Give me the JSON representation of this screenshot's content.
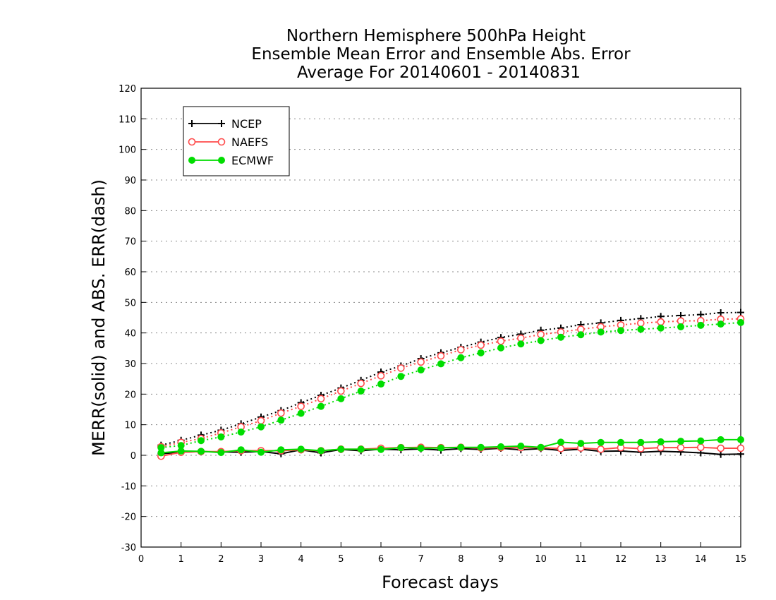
{
  "chart_data": {
    "type": "line",
    "title": [
      "Northern Hemisphere 500hPa Height",
      "Ensemble Mean Error and Ensemble Abs. Error",
      "Average For 20140601 - 20140831"
    ],
    "xlabel": "Forecast days",
    "ylabel": "MERR(solid) and ABS. ERR(dash)",
    "xlim": [
      0,
      15
    ],
    "ylim": [
      -30,
      120
    ],
    "xticks": [
      "0",
      "1",
      "2",
      "3",
      "4",
      "5",
      "6",
      "7",
      "8",
      "9",
      "10",
      "11",
      "12",
      "13",
      "14",
      "15"
    ],
    "yticks": [
      "-30",
      "-20",
      "-10",
      "0",
      "10",
      "20",
      "30",
      "40",
      "50",
      "60",
      "70",
      "80",
      "90",
      "100",
      "110",
      "120"
    ],
    "grid": "dotted horizontal",
    "legend_position": "top-left",
    "x": [
      0.5,
      1,
      1.5,
      2,
      2.5,
      3,
      3.5,
      4,
      4.5,
      5,
      5.5,
      6,
      6.5,
      7,
      7.5,
      8,
      8.5,
      9,
      9.5,
      10,
      10.5,
      11,
      11.5,
      12,
      12.5,
      13,
      13.5,
      14,
      14.5,
      15
    ],
    "series": [
      {
        "name": "NCEP",
        "color": "#000000",
        "marker": "plus",
        "merr": [
          0.5,
          1.0,
          1.2,
          1.1,
          1.0,
          1.2,
          0.5,
          1.8,
          0.8,
          1.9,
          1.5,
          2.0,
          1.8,
          2.1,
          1.7,
          2.2,
          1.9,
          2.3,
          1.8,
          2.2,
          1.6,
          2.0,
          1.3,
          1.4,
          1.0,
          1.3,
          1.1,
          0.8,
          0.3,
          0.4
        ],
        "abs_err": [
          3.3,
          4.9,
          6.6,
          8.2,
          10.3,
          12.5,
          14.6,
          17.2,
          19.6,
          22.0,
          24.5,
          27.2,
          29.2,
          31.6,
          33.5,
          35.3,
          37.0,
          38.5,
          39.6,
          40.9,
          41.6,
          42.7,
          43.3,
          44.1,
          44.7,
          45.4,
          45.7,
          46.0,
          46.6,
          46.7
        ]
      },
      {
        "name": "NAEFS",
        "color": "#ff4a4a",
        "marker": "open-circle",
        "merr": [
          -0.3,
          1.0,
          1.2,
          1.2,
          1.5,
          1.5,
          1.5,
          1.8,
          1.5,
          2.0,
          2.0,
          2.3,
          2.5,
          2.6,
          2.5,
          2.6,
          2.4,
          2.5,
          2.5,
          2.5,
          2.2,
          2.4,
          2.0,
          2.5,
          2.2,
          2.5,
          2.5,
          2.6,
          2.3,
          2.3
        ],
        "abs_err": [
          2.8,
          4.2,
          5.5,
          7.3,
          9.3,
          11.3,
          13.8,
          16.0,
          18.5,
          21.0,
          23.5,
          26.0,
          28.5,
          30.5,
          32.5,
          34.5,
          36.0,
          37.3,
          38.3,
          39.5,
          40.3,
          41.2,
          42.0,
          42.6,
          43.2,
          43.6,
          43.9,
          44.0,
          44.5,
          44.6
        ]
      },
      {
        "name": "ECMWF",
        "color": "#00dd00",
        "marker": "filled-circle",
        "merr": [
          0.8,
          1.4,
          1.3,
          0.9,
          1.8,
          1.0,
          1.8,
          2.0,
          1.5,
          2.0,
          2.0,
          1.9,
          2.5,
          2.3,
          2.4,
          2.6,
          2.6,
          2.8,
          3.0,
          2.6,
          4.3,
          3.9,
          4.2,
          4.2,
          4.2,
          4.4,
          4.6,
          4.7,
          5.1,
          5.1
        ],
        "abs_err": [
          2.5,
          3.2,
          4.8,
          6.0,
          7.6,
          9.3,
          11.5,
          13.7,
          16.0,
          18.5,
          21.0,
          23.3,
          25.8,
          27.9,
          29.9,
          31.9,
          33.5,
          35.1,
          36.4,
          37.5,
          38.6,
          39.4,
          40.3,
          40.8,
          41.2,
          41.6,
          42.0,
          42.5,
          42.9,
          43.4
        ]
      }
    ]
  }
}
